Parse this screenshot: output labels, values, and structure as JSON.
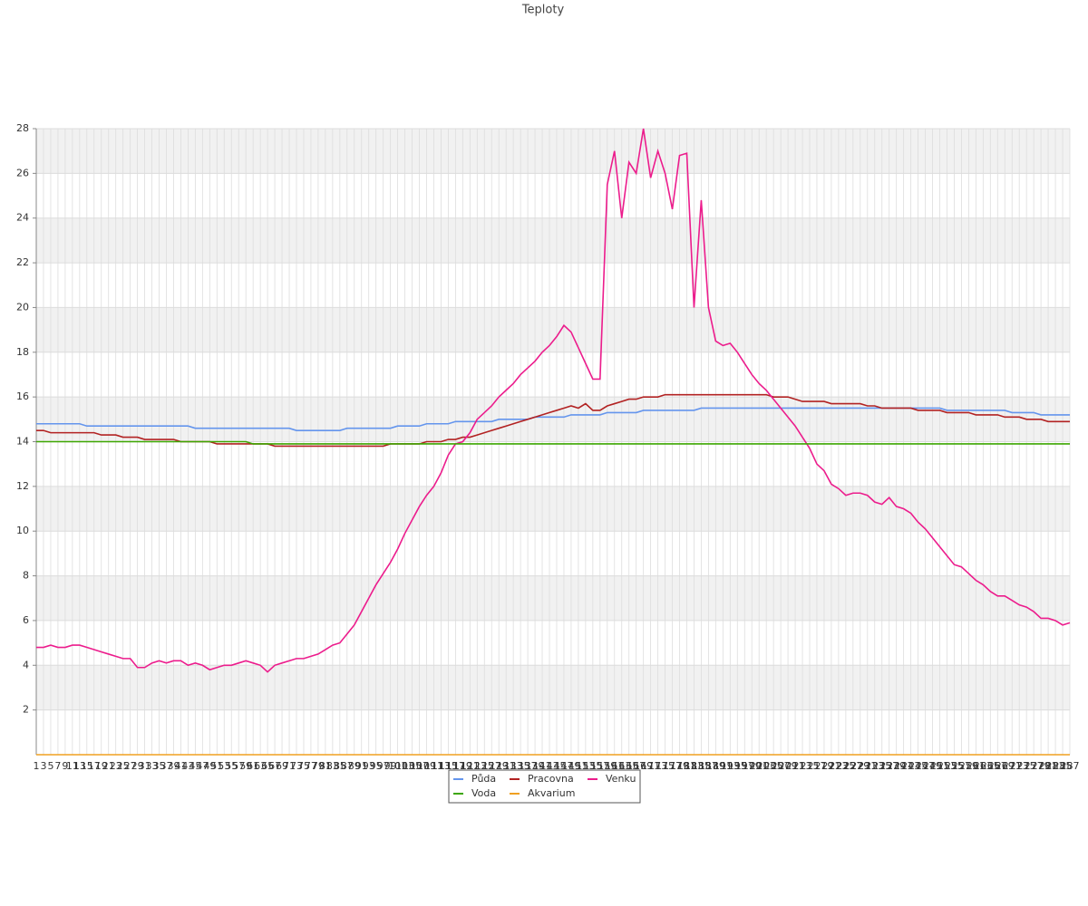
{
  "chart_data": {
    "type": "line",
    "title": "Teploty",
    "categories": [
      1,
      3,
      5,
      7,
      9,
      11,
      13,
      15,
      17,
      19,
      21,
      23,
      25,
      27,
      29,
      31,
      33,
      35,
      37,
      39,
      41,
      43,
      45,
      47,
      49,
      51,
      53,
      55,
      57,
      59,
      61,
      63,
      65,
      67,
      69,
      71,
      73,
      75,
      77,
      79,
      81,
      83,
      85,
      87,
      89,
      91,
      93,
      95,
      97,
      99,
      101,
      103,
      105,
      107,
      109,
      111,
      113,
      115,
      117,
      119,
      121,
      123,
      125,
      127,
      129,
      131,
      133,
      135,
      137,
      139,
      141,
      143,
      145,
      147,
      149,
      151,
      153,
      155,
      157,
      159,
      161,
      163,
      165,
      167,
      169,
      171,
      173,
      175,
      177,
      179,
      181,
      183,
      185,
      187,
      189,
      191,
      193,
      195,
      197,
      199,
      201,
      203,
      205,
      207,
      209,
      211,
      213,
      215,
      217,
      219,
      221,
      223,
      225,
      227,
      229,
      231,
      233,
      235,
      237,
      239,
      241,
      243,
      245,
      247,
      249,
      251,
      253,
      255,
      257,
      259,
      261,
      263,
      265,
      267,
      269,
      271,
      273,
      275,
      277,
      279,
      281,
      283,
      285,
      287
    ],
    "series": [
      {
        "name": "Půda",
        "color": "#6495ed",
        "values": [
          14.8,
          14.8,
          14.8,
          14.8,
          14.8,
          14.8,
          14.8,
          14.7,
          14.7,
          14.7,
          14.7,
          14.7,
          14.7,
          14.7,
          14.7,
          14.7,
          14.7,
          14.7,
          14.7,
          14.7,
          14.7,
          14.7,
          14.6,
          14.6,
          14.6,
          14.6,
          14.6,
          14.6,
          14.6,
          14.6,
          14.6,
          14.6,
          14.6,
          14.6,
          14.6,
          14.6,
          14.5,
          14.5,
          14.5,
          14.5,
          14.5,
          14.5,
          14.5,
          14.6,
          14.6,
          14.6,
          14.6,
          14.6,
          14.6,
          14.6,
          14.7,
          14.7,
          14.7,
          14.7,
          14.8,
          14.8,
          14.8,
          14.8,
          14.9,
          14.9,
          14.9,
          14.9,
          14.9,
          14.9,
          15.0,
          15.0,
          15.0,
          15.0,
          15.0,
          15.1,
          15.1,
          15.1,
          15.1,
          15.1,
          15.2,
          15.2,
          15.2,
          15.2,
          15.2,
          15.3,
          15.3,
          15.3,
          15.3,
          15.3,
          15.4,
          15.4,
          15.4,
          15.4,
          15.4,
          15.4,
          15.4,
          15.4,
          15.5,
          15.5,
          15.5,
          15.5,
          15.5,
          15.5,
          15.5,
          15.5,
          15.5,
          15.5,
          15.5,
          15.5,
          15.5,
          15.5,
          15.5,
          15.5,
          15.5,
          15.5,
          15.5,
          15.5,
          15.5,
          15.5,
          15.5,
          15.5,
          15.5,
          15.5,
          15.5,
          15.5,
          15.5,
          15.5,
          15.5,
          15.5,
          15.5,
          15.5,
          15.4,
          15.4,
          15.4,
          15.4,
          15.4,
          15.4,
          15.4,
          15.4,
          15.4,
          15.3,
          15.3,
          15.3,
          15.3,
          15.2,
          15.2,
          15.2,
          15.2,
          15.2
        ]
      },
      {
        "name": "Pracovna",
        "color": "#b22222",
        "values": [
          14.5,
          14.5,
          14.4,
          14.4,
          14.4,
          14.4,
          14.4,
          14.4,
          14.4,
          14.3,
          14.3,
          14.3,
          14.2,
          14.2,
          14.2,
          14.1,
          14.1,
          14.1,
          14.1,
          14.1,
          14.0,
          14.0,
          14.0,
          14.0,
          14.0,
          13.9,
          13.9,
          13.9,
          13.9,
          13.9,
          13.9,
          13.9,
          13.9,
          13.8,
          13.8,
          13.8,
          13.8,
          13.8,
          13.8,
          13.8,
          13.8,
          13.8,
          13.8,
          13.8,
          13.8,
          13.8,
          13.8,
          13.8,
          13.8,
          13.9,
          13.9,
          13.9,
          13.9,
          13.9,
          14.0,
          14.0,
          14.0,
          14.1,
          14.1,
          14.2,
          14.2,
          14.3,
          14.4,
          14.5,
          14.6,
          14.7,
          14.8,
          14.9,
          15.0,
          15.1,
          15.2,
          15.3,
          15.4,
          15.5,
          15.6,
          15.5,
          15.7,
          15.4,
          15.4,
          15.6,
          15.7,
          15.8,
          15.9,
          15.9,
          16.0,
          16.0,
          16.0,
          16.1,
          16.1,
          16.1,
          16.1,
          16.1,
          16.1,
          16.1,
          16.1,
          16.1,
          16.1,
          16.1,
          16.1,
          16.1,
          16.1,
          16.1,
          16.0,
          16.0,
          16.0,
          15.9,
          15.8,
          15.8,
          15.8,
          15.8,
          15.7,
          15.7,
          15.7,
          15.7,
          15.7,
          15.6,
          15.6,
          15.5,
          15.5,
          15.5,
          15.5,
          15.5,
          15.4,
          15.4,
          15.4,
          15.4,
          15.3,
          15.3,
          15.3,
          15.3,
          15.2,
          15.2,
          15.2,
          15.2,
          15.1,
          15.1,
          15.1,
          15.0,
          15.0,
          15.0,
          14.9,
          14.9,
          14.9,
          14.9
        ]
      },
      {
        "name": "Venku",
        "color": "#ec1c8c",
        "values": [
          4.8,
          4.8,
          4.9,
          4.8,
          4.8,
          4.9,
          4.9,
          4.8,
          4.7,
          4.6,
          4.5,
          4.4,
          4.3,
          4.3,
          3.9,
          3.9,
          4.1,
          4.2,
          4.1,
          4.2,
          4.2,
          4.0,
          4.1,
          4.0,
          3.8,
          3.9,
          4.0,
          4.0,
          4.1,
          4.2,
          4.1,
          4.0,
          3.7,
          4.0,
          4.1,
          4.2,
          4.3,
          4.3,
          4.4,
          4.5,
          4.7,
          4.9,
          5.0,
          5.4,
          5.8,
          6.4,
          7.0,
          7.6,
          8.1,
          8.6,
          9.2,
          9.9,
          10.5,
          11.1,
          11.6,
          12.0,
          12.6,
          13.4,
          13.9,
          14.0,
          14.4,
          15.0,
          15.3,
          15.6,
          16.0,
          16.3,
          16.6,
          17.0,
          17.3,
          17.6,
          18.0,
          18.3,
          18.7,
          19.2,
          18.9,
          18.2,
          17.5,
          16.8,
          16.8,
          25.5,
          27.0,
          24.0,
          26.5,
          26.0,
          28.0,
          25.8,
          27.0,
          26.0,
          24.4,
          26.8,
          26.9,
          20.0,
          24.8,
          20.0,
          18.5,
          18.3,
          18.4,
          18.0,
          17.5,
          17.0,
          16.6,
          16.3,
          15.9,
          15.5,
          15.1,
          14.7,
          14.2,
          13.7,
          13.0,
          12.7,
          12.1,
          11.9,
          11.6,
          11.7,
          11.7,
          11.6,
          11.3,
          11.2,
          11.5,
          11.1,
          11.0,
          10.8,
          10.4,
          10.1,
          9.7,
          9.3,
          8.9,
          8.5,
          8.4,
          8.1,
          7.8,
          7.6,
          7.3,
          7.1,
          7.1,
          6.9,
          6.7,
          6.6,
          6.4,
          6.1,
          6.1,
          6.0,
          5.8,
          5.9
        ]
      },
      {
        "name": "Voda",
        "color": "#3ca600",
        "values": [
          14.0,
          14.0,
          14.0,
          14.0,
          14.0,
          14.0,
          14.0,
          14.0,
          14.0,
          14.0,
          14.0,
          14.0,
          14.0,
          14.0,
          14.0,
          14.0,
          14.0,
          14.0,
          14.0,
          14.0,
          14.0,
          14.0,
          14.0,
          14.0,
          14.0,
          14.0,
          14.0,
          14.0,
          14.0,
          14.0,
          13.9,
          13.9,
          13.9,
          13.9,
          13.9,
          13.9,
          13.9,
          13.9,
          13.9,
          13.9,
          13.9,
          13.9,
          13.9,
          13.9,
          13.9,
          13.9,
          13.9,
          13.9,
          13.9,
          13.9,
          13.9,
          13.9,
          13.9,
          13.9,
          13.9,
          13.9,
          13.9,
          13.9,
          13.9,
          13.9,
          13.9,
          13.9,
          13.9,
          13.9,
          13.9,
          13.9,
          13.9,
          13.9,
          13.9,
          13.9,
          13.9,
          13.9,
          13.9,
          13.9,
          13.9,
          13.9,
          13.9,
          13.9,
          13.9,
          13.9,
          13.9,
          13.9,
          13.9,
          13.9,
          13.9,
          13.9,
          13.9,
          13.9,
          13.9,
          13.9,
          13.9,
          13.9,
          13.9,
          13.9,
          13.9,
          13.9,
          13.9,
          13.9,
          13.9,
          13.9,
          13.9,
          13.9,
          13.9,
          13.9,
          13.9,
          13.9,
          13.9,
          13.9,
          13.9,
          13.9,
          13.9,
          13.9,
          13.9,
          13.9,
          13.9,
          13.9,
          13.9,
          13.9,
          13.9,
          13.9,
          13.9,
          13.9,
          13.9,
          13.9,
          13.9,
          13.9,
          13.9,
          13.9,
          13.9,
          13.9,
          13.9,
          13.9,
          13.9,
          13.9,
          13.9,
          13.9,
          13.9,
          13.9,
          13.9,
          13.9,
          13.9,
          13.9,
          13.9,
          13.9
        ]
      },
      {
        "name": "Akvarium",
        "color": "#f0a020",
        "values": [
          0,
          0,
          0,
          0,
          0,
          0,
          0,
          0,
          0,
          0,
          0,
          0,
          0,
          0,
          0,
          0,
          0,
          0,
          0,
          0,
          0,
          0,
          0,
          0,
          0,
          0,
          0,
          0,
          0,
          0,
          0,
          0,
          0,
          0,
          0,
          0,
          0,
          0,
          0,
          0,
          0,
          0,
          0,
          0,
          0,
          0,
          0,
          0,
          0,
          0,
          0,
          0,
          0,
          0,
          0,
          0,
          0,
          0,
          0,
          0,
          0,
          0,
          0,
          0,
          0,
          0,
          0,
          0,
          0,
          0,
          0,
          0,
          0,
          0,
          0,
          0,
          0,
          0,
          0,
          0,
          0,
          0,
          0,
          0,
          0,
          0,
          0,
          0,
          0,
          0,
          0,
          0,
          0,
          0,
          0,
          0,
          0,
          0,
          0,
          0,
          0,
          0,
          0,
          0,
          0,
          0,
          0,
          0,
          0,
          0,
          0,
          0,
          0,
          0,
          0,
          0,
          0,
          0,
          0,
          0,
          0,
          0,
          0,
          0,
          0,
          0,
          0,
          0,
          0,
          0,
          0,
          0,
          0,
          0,
          0,
          0,
          0,
          0,
          0,
          0,
          0,
          0,
          0,
          0
        ]
      }
    ],
    "ylim": [
      0,
      28
    ],
    "yticks": [
      2,
      4,
      6,
      8,
      10,
      12,
      14,
      16,
      18,
      20,
      22,
      24,
      26,
      28
    ],
    "grid": true,
    "legend": "bottom"
  }
}
